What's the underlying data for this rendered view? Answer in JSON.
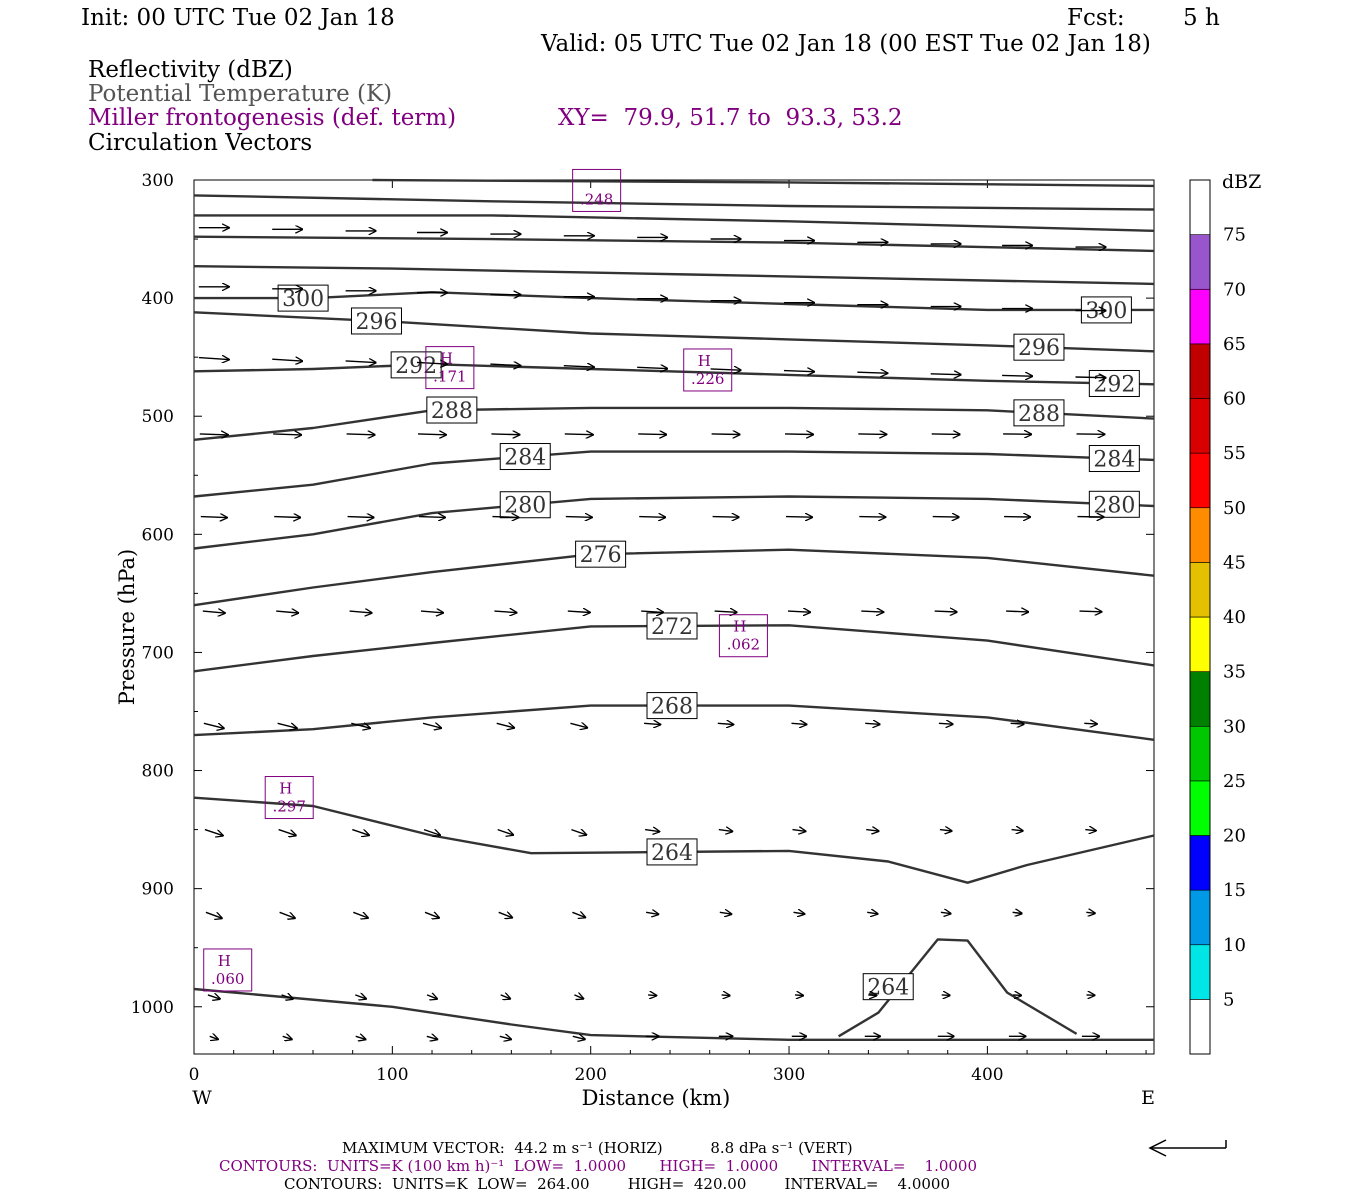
{
  "header": {
    "init": "Init: 00 UTC Tue 02 Jan 18",
    "fcst_label": "Fcst:",
    "fcst_value": "5 h",
    "valid": "Valid: 05 UTC Tue 02 Jan 18 (00 EST Tue 02 Jan 18)",
    "field1": "Reflectivity (dBZ)",
    "field2": "Potential Temperature (K)",
    "field3": "Miller frontogenesis (def. term)",
    "xy": "XY=  79.9, 51.7 to  93.3, 53.2",
    "field4": "Circulation Vectors"
  },
  "footer": {
    "max_vector": "MAXIMUM VECTOR:  44.2 m s⁻¹ (HORIZ)          8.8 dPa s⁻¹ (VERT)",
    "contours1": "CONTOURS:  UNITS=K (100 km h)⁻¹  LOW=  1.0000       HIGH=  1.0000       INTERVAL=    1.0000",
    "contours2": "CONTOURS:  UNITS=K  LOW=  264.00        HIGH=  420.00        INTERVAL=    4.0000"
  },
  "colors": {
    "theta_line": "#333333",
    "frontogenesis": "#800080",
    "scale": [
      "#ffffff",
      "#00e5e5",
      "#0099e5",
      "#0000ff",
      "#00ff00",
      "#00c800",
      "#008000",
      "#ffff00",
      "#e5c000",
      "#ff8c00",
      "#ff0000",
      "#d80000",
      "#c00000",
      "#ff00ff",
      "#9955cc",
      "#ffffff"
    ]
  },
  "chart_data": {
    "type": "line",
    "xlabel": "Distance (km)",
    "ylabel": "Pressure (hPa)",
    "xlim": [
      0,
      484
    ],
    "ylim": [
      1040,
      300
    ],
    "x_ticks": [
      "0",
      "100",
      "200",
      "300",
      "400"
    ],
    "y_ticks": [
      "300",
      "400",
      "500",
      "600",
      "700",
      "800",
      "900",
      "1000"
    ],
    "left_label": "W",
    "right_label": "E",
    "theta_contours": [
      {
        "label": "300",
        "points": [
          [
            0,
            400
          ],
          [
            60,
            400
          ],
          [
            120,
            395
          ],
          [
            200,
            400
          ],
          [
            300,
            405
          ],
          [
            400,
            410
          ],
          [
            484,
            410
          ]
        ]
      },
      {
        "label": "296",
        "points": [
          [
            0,
            412
          ],
          [
            100,
            420
          ],
          [
            200,
            430
          ],
          [
            300,
            435
          ],
          [
            400,
            440
          ],
          [
            484,
            445
          ]
        ]
      },
      {
        "label": "292",
        "points": [
          [
            0,
            462
          ],
          [
            60,
            460
          ],
          [
            120,
            456
          ],
          [
            200,
            460
          ],
          [
            300,
            465
          ],
          [
            400,
            470
          ],
          [
            484,
            473
          ]
        ]
      },
      {
        "label": "288",
        "points": [
          [
            0,
            520
          ],
          [
            60,
            510
          ],
          [
            120,
            495
          ],
          [
            200,
            493
          ],
          [
            300,
            493
          ],
          [
            400,
            495
          ],
          [
            484,
            502
          ]
        ]
      },
      {
        "label": "284",
        "points": [
          [
            0,
            568
          ],
          [
            60,
            558
          ],
          [
            120,
            540
          ],
          [
            200,
            530
          ],
          [
            300,
            530
          ],
          [
            400,
            532
          ],
          [
            484,
            537
          ]
        ]
      },
      {
        "label": "280",
        "points": [
          [
            0,
            612
          ],
          [
            60,
            600
          ],
          [
            120,
            582
          ],
          [
            200,
            570
          ],
          [
            300,
            568
          ],
          [
            400,
            570
          ],
          [
            484,
            576
          ]
        ]
      },
      {
        "label": "276",
        "points": [
          [
            0,
            660
          ],
          [
            60,
            645
          ],
          [
            120,
            632
          ],
          [
            200,
            617
          ],
          [
            300,
            613
          ],
          [
            400,
            620
          ],
          [
            484,
            635
          ]
        ]
      },
      {
        "label": "272",
        "points": [
          [
            0,
            716
          ],
          [
            60,
            703
          ],
          [
            120,
            692
          ],
          [
            200,
            678
          ],
          [
            300,
            677
          ],
          [
            400,
            690
          ],
          [
            484,
            711
          ]
        ]
      },
      {
        "label": "268",
        "points": [
          [
            0,
            770
          ],
          [
            60,
            765
          ],
          [
            120,
            755
          ],
          [
            200,
            745
          ],
          [
            300,
            745
          ],
          [
            400,
            755
          ],
          [
            484,
            774
          ]
        ]
      },
      {
        "label": "264",
        "points": [
          [
            0,
            823
          ],
          [
            60,
            830
          ],
          [
            120,
            855
          ],
          [
            170,
            870
          ],
          [
            300,
            868
          ],
          [
            350,
            877
          ],
          [
            390,
            895
          ],
          [
            420,
            880
          ],
          [
            484,
            855
          ]
        ]
      },
      {
        "label": "264",
        "points": [
          [
            325,
            1025
          ],
          [
            345,
            1005
          ],
          [
            375,
            943
          ],
          [
            390,
            944
          ],
          [
            410,
            988
          ],
          [
            445,
            1023
          ]
        ]
      },
      {
        "label": "",
        "points": [
          [
            0,
            985
          ],
          [
            100,
            1000
          ],
          [
            160,
            1015
          ],
          [
            200,
            1024
          ],
          [
            300,
            1028
          ],
          [
            484,
            1028
          ]
        ]
      },
      {
        "label": "",
        "points": [
          [
            0,
            313
          ],
          [
            150,
            318
          ],
          [
            300,
            322
          ],
          [
            484,
            325
          ]
        ]
      },
      {
        "label": "",
        "points": [
          [
            0,
            330
          ],
          [
            150,
            330
          ],
          [
            300,
            335
          ],
          [
            484,
            343
          ]
        ]
      },
      {
        "label": "",
        "points": [
          [
            0,
            348
          ],
          [
            150,
            350
          ],
          [
            300,
            353
          ],
          [
            484,
            360
          ]
        ]
      },
      {
        "label": "",
        "points": [
          [
            0,
            373
          ],
          [
            100,
            375
          ],
          [
            250,
            380
          ],
          [
            484,
            388
          ]
        ]
      },
      {
        "label": "",
        "points": [
          [
            90,
            300
          ],
          [
            300,
            302
          ],
          [
            484,
            305
          ]
        ]
      }
    ],
    "frontogenesis_maxima": [
      {
        "symbol": "",
        "value": ".248",
        "x": 203,
        "p": 308
      },
      {
        "symbol": "H",
        "value": ".171",
        "x": 129,
        "p": 458
      },
      {
        "symbol": "H",
        "value": ".226",
        "x": 259,
        "p": 460
      },
      {
        "symbol": "H",
        "value": ".062",
        "x": 277,
        "p": 685
      },
      {
        "symbol": "H",
        "value": ".297",
        "x": 48,
        "p": 822
      },
      {
        "symbol": "H",
        "value": ".060",
        "x": 17,
        "p": 968
      }
    ],
    "vector_rows_p": [
      340,
      390,
      450,
      515,
      585,
      665,
      760,
      850,
      920,
      990,
      1025
    ],
    "vectors_x": [
      10,
      47,
      84,
      120,
      157,
      194,
      231,
      268,
      305,
      342,
      379,
      415,
      452
    ],
    "colorbar": {
      "title": "dBZ",
      "levels": [
        "5",
        "10",
        "15",
        "20",
        "25",
        "30",
        "35",
        "40",
        "45",
        "50",
        "55",
        "60",
        "65",
        "70",
        "75"
      ]
    }
  }
}
